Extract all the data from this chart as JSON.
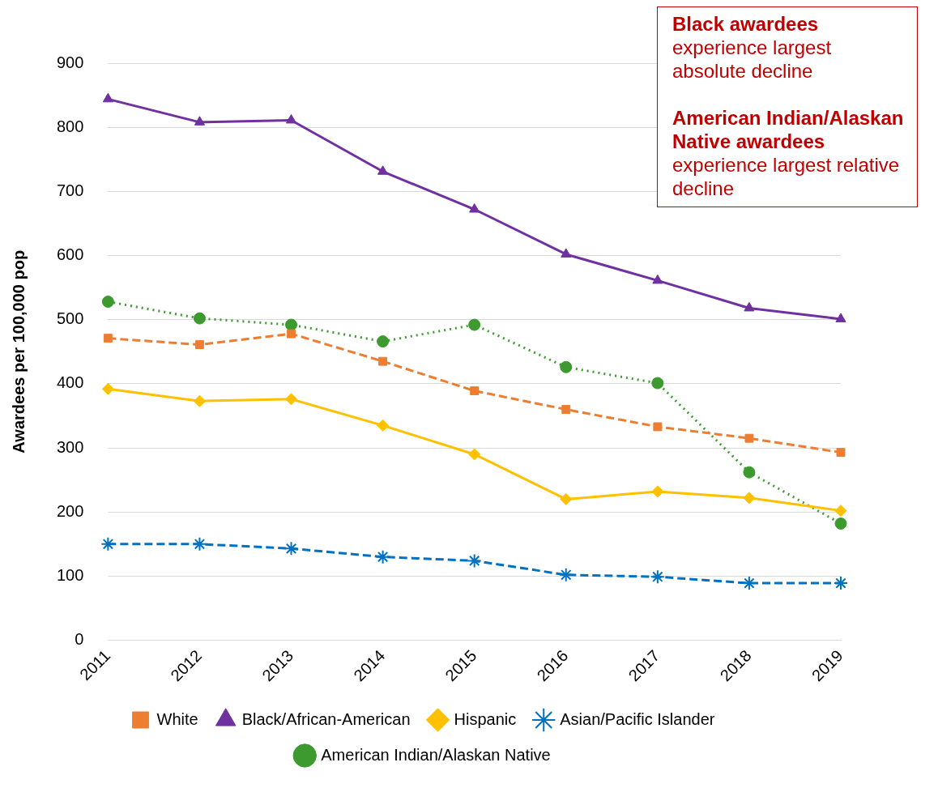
{
  "chart_data": {
    "type": "line",
    "ylabel": "Awardees per 100,000 pop",
    "categories": [
      "2011",
      "2012",
      "2013",
      "2014",
      "2015",
      "2016",
      "2017",
      "2018",
      "2019"
    ],
    "ylim": [
      0,
      900
    ],
    "yticks": [
      0,
      100,
      200,
      300,
      400,
      500,
      600,
      700,
      800,
      900
    ],
    "grid": "y",
    "legend": "bottom",
    "annotations": [
      "Black awardees",
      "experience largest absolute decline",
      "American Indian/Alaskan Native awardees",
      "experience largest relative decline"
    ],
    "series": [
      {
        "name": "White",
        "color": "#ed7d31",
        "marker": "square",
        "line_style": "dashed",
        "values": [
          471,
          461,
          478,
          435,
          389,
          360,
          333,
          315,
          293
        ]
      },
      {
        "name": "Black/African-American",
        "color": "#7030a0",
        "marker": "triangle",
        "line_style": "solid",
        "values": [
          844,
          808,
          811,
          731,
          672,
          602,
          561,
          518,
          501
        ]
      },
      {
        "name": "Hispanic",
        "color": "#ffc000",
        "marker": "diamond",
        "line_style": "solid",
        "values": [
          392,
          373,
          376,
          335,
          290,
          220,
          232,
          222,
          202
        ]
      },
      {
        "name": "Asian/Pacific Islander",
        "color": "#0070c0",
        "marker": "cross",
        "line_style": "dashed",
        "values": [
          150,
          150,
          143,
          130,
          124,
          102,
          99,
          89,
          89
        ]
      },
      {
        "name": "American Indian/Alaskan Native",
        "color": "#3c9a2e",
        "marker": "circle",
        "line_style": "dotted",
        "values": [
          528,
          502,
          492,
          466,
          492,
          426,
          401,
          262,
          182
        ]
      }
    ]
  }
}
